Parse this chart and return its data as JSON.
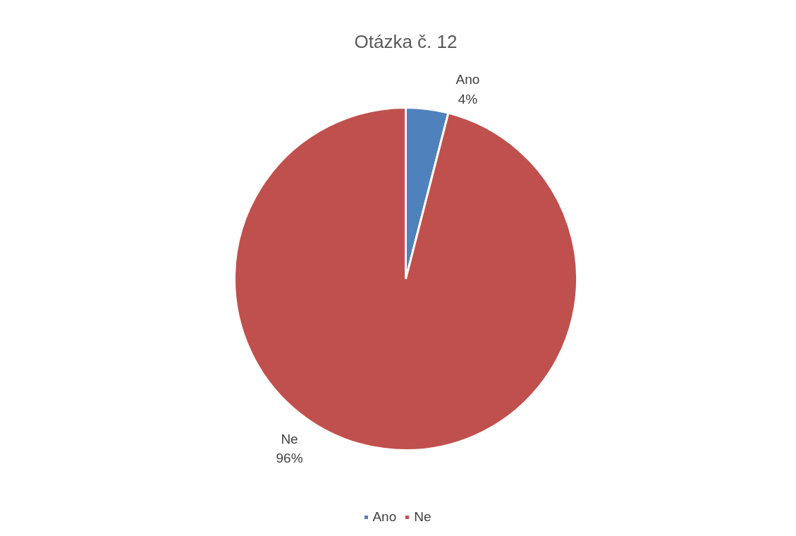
{
  "chart_data": {
    "type": "pie",
    "title": "Otázka č. 12",
    "categories": [
      "Ano",
      "Ne"
    ],
    "values": [
      4,
      96
    ],
    "value_labels": [
      "4%",
      "96%"
    ],
    "colors": [
      "#4f81bd",
      "#c0504d"
    ],
    "legend": "bottom"
  }
}
